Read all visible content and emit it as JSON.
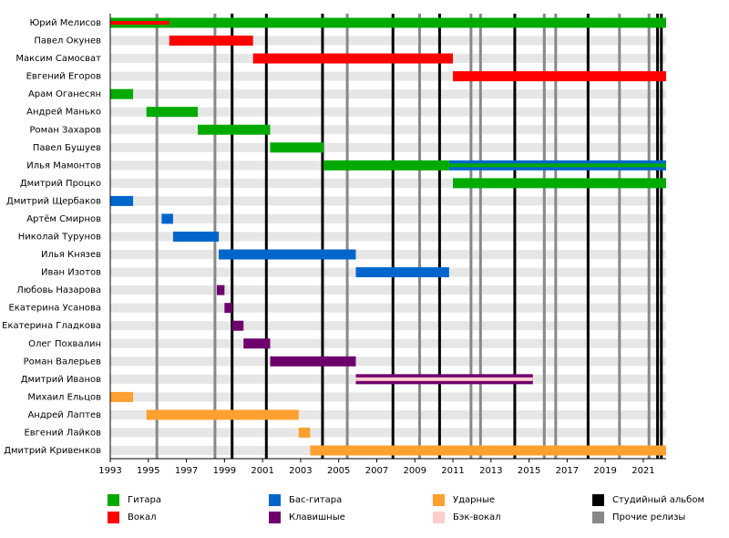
{
  "chart_data": {
    "type": "timeline",
    "xlim": [
      1993,
      2022.2
    ],
    "xticks": [
      1993,
      1995,
      1997,
      1999,
      2001,
      2003,
      2005,
      2007,
      2009,
      2011,
      2013,
      2015,
      2017,
      2019,
      2021
    ],
    "roles": [
      {
        "name": "Гитара",
        "color": "#00aa00"
      },
      {
        "name": "Вокал",
        "color": "#ff0000"
      },
      {
        "name": "Бас-гитара",
        "color": "#0066cc"
      },
      {
        "name": "Клавишные",
        "color": "#6e006e"
      },
      {
        "name": "Ударные",
        "color": "#ffa030"
      },
      {
        "name": "Бэк-вокал",
        "color": "#ffcccc"
      }
    ],
    "events": [
      {
        "name": "Студийный альбом",
        "color": "#000000",
        "values": [
          1999.4,
          2001.2,
          2004.15,
          2007.85,
          2010.3,
          2014.25,
          2018.1,
          2021.75,
          2021.95
        ]
      },
      {
        "name": "Прочие релизы",
        "color": "#888888",
        "values": [
          1995.45,
          1998.5,
          2005.45,
          2009.25,
          2011.95,
          2012.45,
          2015.8,
          2016.4,
          2019.75,
          2021.3
        ]
      }
    ],
    "members": [
      {
        "name": "Юрий Мелисов",
        "segments": [
          {
            "start": 1993,
            "end": 2022.2,
            "role": "Гитара"
          },
          {
            "start": 1993,
            "end": 1996.1,
            "role": "Вокал",
            "thin": true
          }
        ]
      },
      {
        "name": "Павел Окунев",
        "segments": [
          {
            "start": 1996.1,
            "end": 2000.5,
            "role": "Вокал"
          }
        ]
      },
      {
        "name": "Максим Самосват",
        "segments": [
          {
            "start": 2000.5,
            "end": 2011.0,
            "role": "Вокал"
          }
        ]
      },
      {
        "name": "Евгений Егоров",
        "segments": [
          {
            "start": 2011.0,
            "end": 2022.2,
            "role": "Вокал"
          }
        ]
      },
      {
        "name": "Арам Оганесян",
        "segments": [
          {
            "start": 1993,
            "end": 1994.2,
            "role": "Гитара"
          }
        ]
      },
      {
        "name": "Андрей Манько",
        "segments": [
          {
            "start": 1994.9,
            "end": 1997.6,
            "role": "Гитара"
          }
        ]
      },
      {
        "name": "Роман Захаров",
        "segments": [
          {
            "start": 1997.6,
            "end": 2001.4,
            "role": "Гитара"
          }
        ]
      },
      {
        "name": "Павел Бушуев",
        "segments": [
          {
            "start": 2001.4,
            "end": 2004.2,
            "role": "Гитара"
          }
        ]
      },
      {
        "name": "Илья Мамонтов",
        "segments": [
          {
            "start": 2004.2,
            "end": 2010.8,
            "role": "Гитара"
          },
          {
            "start": 2010.8,
            "end": 2022.2,
            "role": "Бас-гитара"
          },
          {
            "start": 2010.8,
            "end": 2022.2,
            "role": "Гитара",
            "thin": true
          }
        ]
      },
      {
        "name": "Дмитрий Процко",
        "segments": [
          {
            "start": 2011.0,
            "end": 2022.2,
            "role": "Гитара"
          }
        ]
      },
      {
        "name": "Дмитрий Щербаков",
        "segments": [
          {
            "start": 1993,
            "end": 1994.2,
            "role": "Бас-гитара"
          }
        ]
      },
      {
        "name": "Артём Смирнов",
        "segments": [
          {
            "start": 1995.7,
            "end": 1996.3,
            "role": "Бас-гитара"
          }
        ]
      },
      {
        "name": "Николай Турунов",
        "segments": [
          {
            "start": 1996.3,
            "end": 1998.7,
            "role": "Бас-гитара"
          }
        ]
      },
      {
        "name": "Илья Князев",
        "segments": [
          {
            "start": 1998.7,
            "end": 2005.9,
            "role": "Бас-гитара"
          }
        ]
      },
      {
        "name": "Иван Изотов",
        "segments": [
          {
            "start": 2005.9,
            "end": 2010.8,
            "role": "Бас-гитара"
          }
        ]
      },
      {
        "name": "Любовь Назарова",
        "segments": [
          {
            "start": 1998.6,
            "end": 1999.0,
            "role": "Клавишные"
          }
        ]
      },
      {
        "name": "Екатерина Усанова",
        "segments": [
          {
            "start": 1999.0,
            "end": 1999.4,
            "role": "Клавишные"
          }
        ]
      },
      {
        "name": "Екатерина Гладкова",
        "segments": [
          {
            "start": 1999.4,
            "end": 2000.0,
            "role": "Клавишные"
          }
        ]
      },
      {
        "name": "Олег Похвалин",
        "segments": [
          {
            "start": 2000.0,
            "end": 2001.4,
            "role": "Клавишные"
          }
        ]
      },
      {
        "name": "Роман Валерьев",
        "segments": [
          {
            "start": 2001.4,
            "end": 2005.9,
            "role": "Клавишные"
          }
        ]
      },
      {
        "name": "Дмитрий Иванов",
        "segments": [
          {
            "start": 2005.9,
            "end": 2015.2,
            "role": "Клавишные"
          },
          {
            "start": 2005.9,
            "end": 2015.2,
            "role": "Бэк-вокал",
            "thin": true
          }
        ]
      },
      {
        "name": "Михаил Ельцов",
        "segments": [
          {
            "start": 1993,
            "end": 1994.2,
            "role": "Ударные"
          }
        ]
      },
      {
        "name": "Андрей Лаптев",
        "segments": [
          {
            "start": 1994.9,
            "end": 2002.9,
            "role": "Ударные"
          }
        ]
      },
      {
        "name": "Евгений Лайков",
        "segments": [
          {
            "start": 2002.9,
            "end": 2003.5,
            "role": "Ударные"
          }
        ]
      },
      {
        "name": "Дмитрий Кривенков",
        "segments": [
          {
            "start": 2003.5,
            "end": 2022.2,
            "role": "Ударные"
          }
        ]
      }
    ]
  }
}
